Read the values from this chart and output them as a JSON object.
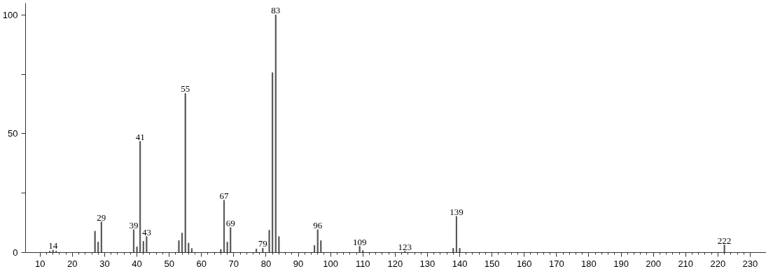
{
  "chart_data": {
    "type": "bar",
    "x": [
      13,
      14,
      15,
      27,
      28,
      29,
      39,
      40,
      41,
      42,
      43,
      53,
      54,
      55,
      56,
      57,
      66,
      67,
      68,
      69,
      77,
      79,
      81,
      82,
      83,
      84,
      95,
      96,
      97,
      109,
      110,
      123,
      138,
      139,
      140,
      222
    ],
    "series": [
      {
        "color": "#555555",
        "values": [
          0.6,
          1,
          0.6,
          9,
          4.4,
          12.9,
          9.6,
          2.4,
          46.8,
          4.7,
          6.7,
          5,
          8.2,
          67,
          4,
          1.7,
          1.3,
          22,
          4.4,
          10.5,
          1.5,
          1.8,
          9.4,
          75.7,
          100,
          6.7,
          3,
          9.6,
          5,
          2.6,
          0.8,
          0.5,
          1.8,
          15.2,
          1.8,
          3.2
        ]
      }
    ],
    "annotations": [
      {
        "text": "14",
        "x": 14,
        "y": 1
      },
      {
        "text": "29",
        "x": 29,
        "y": 12.9
      },
      {
        "text": "39",
        "x": 39,
        "y": 9.6
      },
      {
        "text": "41",
        "x": 41,
        "y": 46.8
      },
      {
        "text": "43",
        "x": 43,
        "y": 6.7
      },
      {
        "text": "55",
        "x": 55,
        "y": 67
      },
      {
        "text": "67",
        "x": 67,
        "y": 22
      },
      {
        "text": "69",
        "x": 69,
        "y": 10.5
      },
      {
        "text": "79",
        "x": 79,
        "y": 1.8
      },
      {
        "text": "83",
        "x": 83,
        "y": 100
      },
      {
        "text": "96",
        "x": 96,
        "y": 9.6
      },
      {
        "text": "109",
        "x": 109,
        "y": 2.6
      },
      {
        "text": "123",
        "x": 123,
        "y": 0.5
      },
      {
        "text": "139",
        "x": 139,
        "y": 15.2
      },
      {
        "text": "222",
        "x": 222,
        "y": 3.2
      }
    ],
    "xlim": [
      5.5,
      235
    ],
    "ylim": [
      0,
      105
    ],
    "xticks": [
      10,
      20,
      30,
      40,
      50,
      60,
      70,
      80,
      90,
      100,
      110,
      120,
      130,
      140,
      150,
      160,
      170,
      180,
      190,
      200,
      210,
      220,
      230
    ],
    "yticks": [
      0,
      {
        "value": 25,
        "label": null
      },
      50,
      {
        "value": 75,
        "label": null
      },
      100
    ],
    "grid": false
  }
}
